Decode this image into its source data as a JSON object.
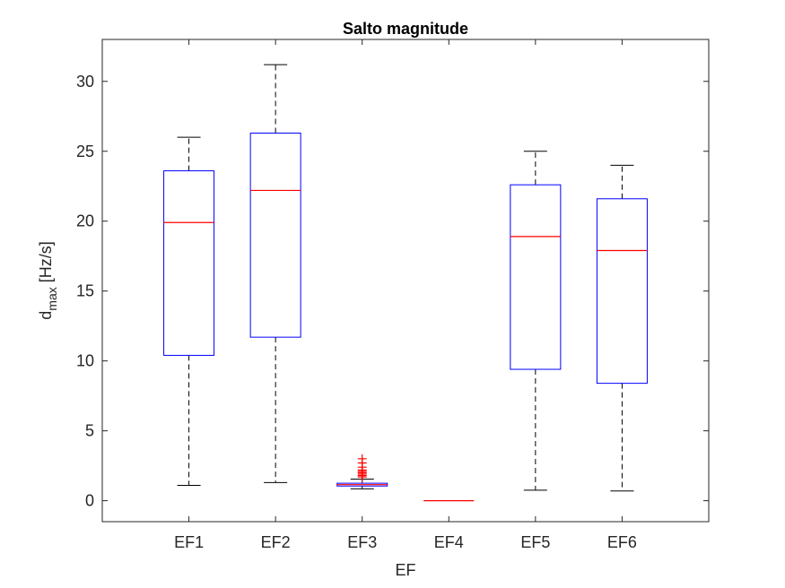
{
  "chart_data": {
    "type": "box",
    "title": "Salto magnitude",
    "xlabel": "EF",
    "ylabel_main": "d",
    "ylabel_sub": "max",
    "ylabel_unit": "[Hz/s]",
    "ylim": [
      -1.5,
      33
    ],
    "yticks": [
      0,
      5,
      10,
      15,
      20,
      25,
      30
    ],
    "categories": [
      "EF1",
      "EF2",
      "EF3",
      "EF4",
      "EF5",
      "EF6"
    ],
    "boxes": [
      {
        "category": "EF1",
        "whisker_low": 1.1,
        "q1": 10.4,
        "median": 19.9,
        "q3": 23.6,
        "whisker_high": 26.0,
        "outliers": []
      },
      {
        "category": "EF2",
        "whisker_low": 1.3,
        "q1": 11.7,
        "median": 22.2,
        "q3": 26.3,
        "whisker_high": 31.2,
        "outliers": []
      },
      {
        "category": "EF3",
        "whisker_low": 0.85,
        "q1": 1.05,
        "median": 1.15,
        "q3": 1.25,
        "whisker_high": 1.55,
        "outliers": [
          1.7,
          1.8,
          1.9,
          2.0,
          2.1,
          2.2,
          2.4,
          2.7,
          3.0
        ]
      },
      {
        "category": "EF4",
        "whisker_low": 0,
        "q1": 0,
        "median": 0,
        "q3": 0,
        "whisker_high": 0,
        "outliers": []
      },
      {
        "category": "EF5",
        "whisker_low": 0.75,
        "q1": 9.4,
        "median": 18.9,
        "q3": 22.6,
        "whisker_high": 25.0,
        "outliers": []
      },
      {
        "category": "EF6",
        "whisker_low": 0.7,
        "q1": 8.4,
        "median": 17.9,
        "q3": 21.6,
        "whisker_high": 24.0,
        "outliers": []
      }
    ],
    "colors": {
      "box": "#0000ff",
      "median": "#ff0000",
      "whisker": "#000000",
      "outlier": "#ff0000",
      "axes": "#262626"
    },
    "grid": false
  }
}
